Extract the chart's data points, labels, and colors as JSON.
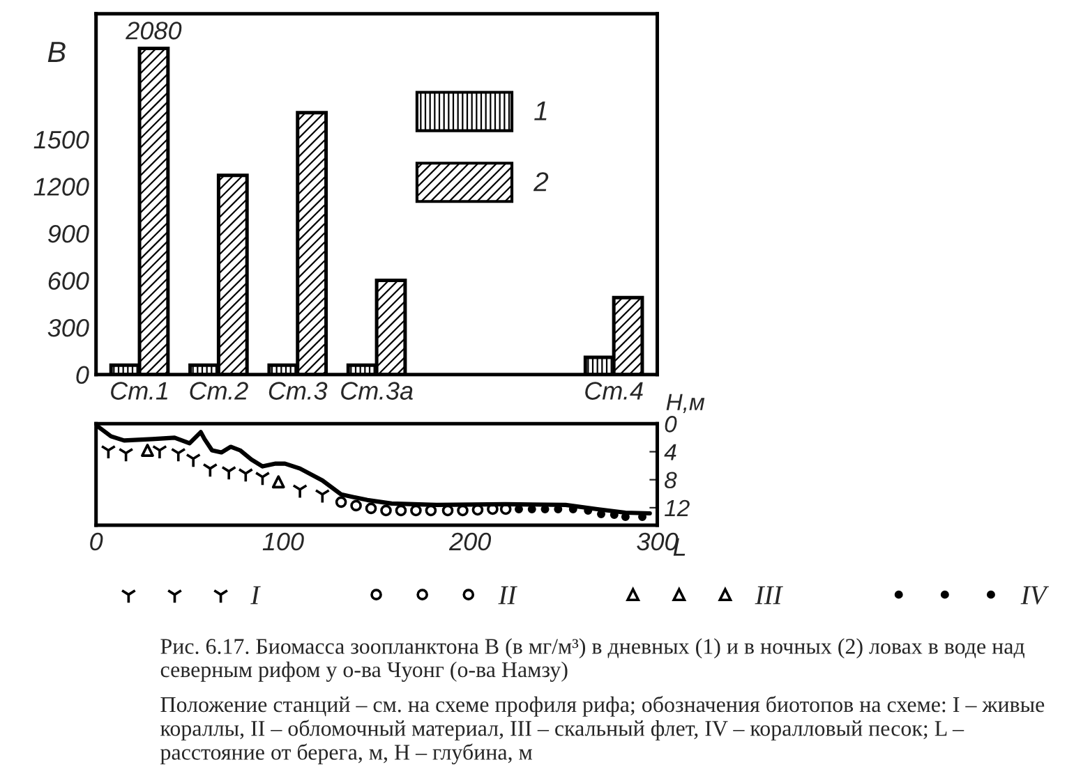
{
  "chart_data": [
    {
      "type": "bar",
      "ylabel": "B",
      "categories": [
        "Ст.1",
        "Ст.2",
        "Ст.3",
        "Ст.3а",
        null,
        null,
        "Ст.4"
      ],
      "series": [
        {
          "name": "1",
          "color": "#000000",
          "values": [
            60,
            60,
            60,
            60,
            null,
            null,
            110
          ]
        },
        {
          "name": "2",
          "color": "#000000",
          "values": [
            2080,
            1270,
            1670,
            600,
            null,
            null,
            490
          ],
          "value_labels": [
            "2080",
            null,
            null,
            null,
            null,
            null,
            null
          ]
        }
      ],
      "ylim": [
        0,
        2300
      ],
      "yticks": [
        0,
        300,
        600,
        900,
        1200,
        1500
      ],
      "grid": false,
      "legend": "top right"
    },
    {
      "type": "line",
      "xlabel": "L",
      "ylabel": "H,м",
      "series": [
        {
          "type": "line",
          "color": "#000000",
          "x": [
            0,
            8,
            15,
            30,
            42,
            50,
            56,
            58,
            62,
            67,
            72,
            77,
            83,
            89,
            96,
            101,
            109,
            121,
            131,
            145,
            158,
            182,
            219,
            251,
            268,
            283,
            296
          ],
          "values": [
            0.2,
            1.8,
            2.4,
            2.2,
            2.0,
            2.8,
            1.2,
            2.2,
            3.8,
            4.1,
            3.3,
            3.8,
            5.1,
            6.1,
            5.7,
            5.7,
            6.4,
            8.1,
            10.1,
            10.9,
            11.4,
            11.6,
            11.5,
            11.6,
            12.2,
            12.7,
            12.8
          ]
        },
        {
          "type": "scatter",
          "name": "I",
          "color": "#000000",
          "x": [
            6.6,
            16,
            34,
            44,
            52,
            61,
            71,
            80,
            89,
            109,
            121
          ],
          "values": [
            3.8,
            4.2,
            3.8,
            4.2,
            5.0,
            6.4,
            6.8,
            7.1,
            7.6,
            9.4,
            10.1
          ]
        },
        {
          "type": "scatter",
          "name": "II",
          "color": "#000000",
          "x": [
            131,
            139,
            147,
            155,
            163,
            171,
            179,
            188,
            196,
            204,
            212,
            219
          ],
          "values": [
            11.2,
            11.7,
            12.1,
            12.4,
            12.4,
            12.4,
            12.4,
            12.4,
            12.4,
            12.3,
            12.2,
            12.2
          ]
        },
        {
          "type": "scatter",
          "name": "III",
          "color": "#000000",
          "x": [
            27.5,
            97.5
          ],
          "values": [
            3.8,
            8.3
          ]
        },
        {
          "type": "scatter",
          "name": "IV",
          "color": "#000000",
          "x": [
            226,
            233,
            240,
            247,
            255,
            263,
            270,
            277,
            283,
            292
          ],
          "values": [
            12.2,
            12.2,
            12.2,
            12.2,
            12.2,
            12.4,
            12.9,
            13.0,
            13.3,
            13.3
          ]
        }
      ],
      "xlim": [
        0,
        300
      ],
      "xticks": [
        0,
        100,
        200,
        300
      ],
      "ylim": [
        14.5,
        0
      ],
      "yticks": [
        0,
        4,
        8,
        12
      ],
      "grid": false,
      "legend": "bottom",
      "annotations": [
        "Рис. 6.17. Биомасса зоопланктона B (в мг/м³) в дневных (1) и в ночных (2) ловах в воде над северным рифом у о-ва Чуонг (о-ва Намзу)",
        "Положение станций – см. на схеме профиля рифа; обозначения биотопов на схеме: I – живые кораллы, II – обломочный материал, III – скальный флет, IV – коралловый песок; L – расстояние от берега, м, H – глубина, м"
      ]
    }
  ]
}
